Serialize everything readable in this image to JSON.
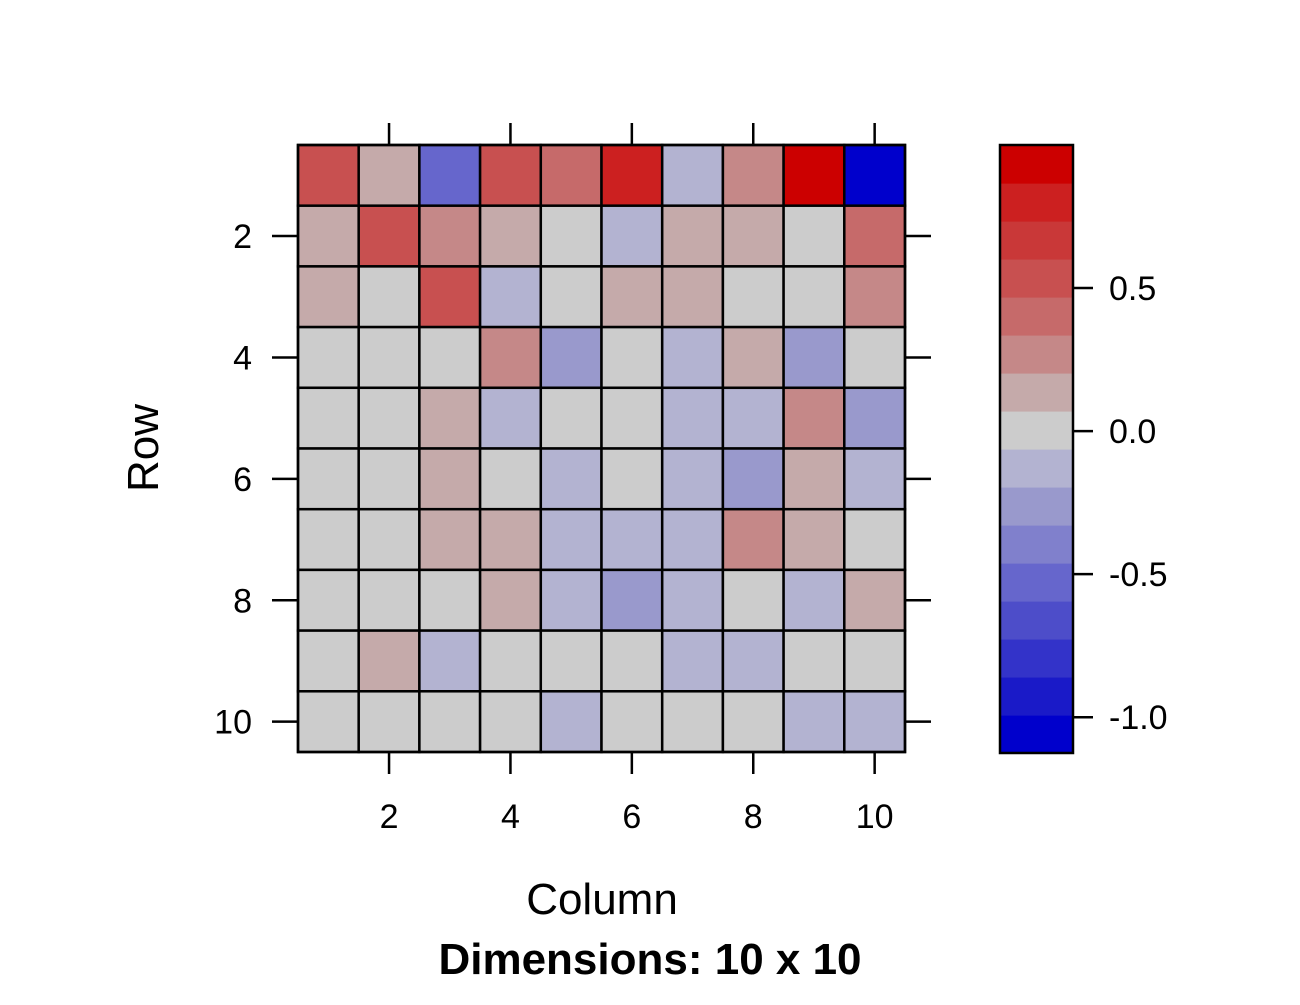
{
  "chart_data": {
    "type": "heatmap",
    "xlabel": "Column",
    "ylabel": "Row",
    "subtitle": "Dimensions: 10 x 10",
    "x_ticks": [
      2,
      4,
      6,
      8,
      10
    ],
    "y_ticks": [
      2,
      4,
      6,
      8,
      10
    ],
    "rows": 10,
    "cols": 10,
    "values": [
      [
        0.6,
        0.15,
        -0.5,
        0.55,
        0.45,
        0.75,
        -0.1,
        0.3,
        0.95,
        -1.05
      ],
      [
        0.15,
        0.55,
        0.3,
        0.15,
        0.0,
        -0.1,
        0.15,
        0.15,
        0.0,
        0.45
      ],
      [
        0.15,
        0.0,
        0.6,
        -0.1,
        0.0,
        0.15,
        0.15,
        0.0,
        0.0,
        0.3
      ],
      [
        0.0,
        0.0,
        0.0,
        0.3,
        -0.3,
        0.0,
        -0.1,
        0.15,
        -0.3,
        0.0
      ],
      [
        0.0,
        0.0,
        0.15,
        -0.1,
        0.0,
        0.0,
        -0.1,
        -0.1,
        0.3,
        -0.3
      ],
      [
        0.0,
        0.0,
        0.15,
        0.0,
        -0.1,
        0.0,
        -0.1,
        -0.3,
        0.15,
        -0.1
      ],
      [
        0.0,
        0.0,
        0.15,
        0.15,
        -0.1,
        -0.1,
        -0.1,
        0.3,
        0.15,
        0.0
      ],
      [
        0.0,
        0.0,
        0.0,
        0.15,
        -0.1,
        -0.3,
        -0.1,
        0.0,
        -0.1,
        0.15
      ],
      [
        0.0,
        0.15,
        -0.1,
        0.0,
        0.0,
        0.0,
        -0.1,
        -0.1,
        0.0,
        0.0
      ],
      [
        0.0,
        0.0,
        0.0,
        0.0,
        -0.1,
        0.0,
        0.0,
        0.0,
        -0.1,
        -0.1
      ]
    ],
    "colorbar": {
      "range": [
        -1.125,
        1.0
      ],
      "ticks": [
        0.5,
        0.0,
        -0.5,
        -1.0
      ],
      "tick_labels": [
        "0.5",
        "0.0",
        "-0.5",
        "-1.0"
      ],
      "palette": [
        "#0000cc",
        "#1a1ac8",
        "#3333c9",
        "#4d4dc9",
        "#6666cc",
        "#8080cc",
        "#9999cc",
        "#b3b3d1",
        "#cccccc",
        "#c5aaaa",
        "#c58888",
        "#c66a6a",
        "#c85050",
        "#c93838",
        "#cc2020",
        "#cc0000"
      ]
    }
  }
}
